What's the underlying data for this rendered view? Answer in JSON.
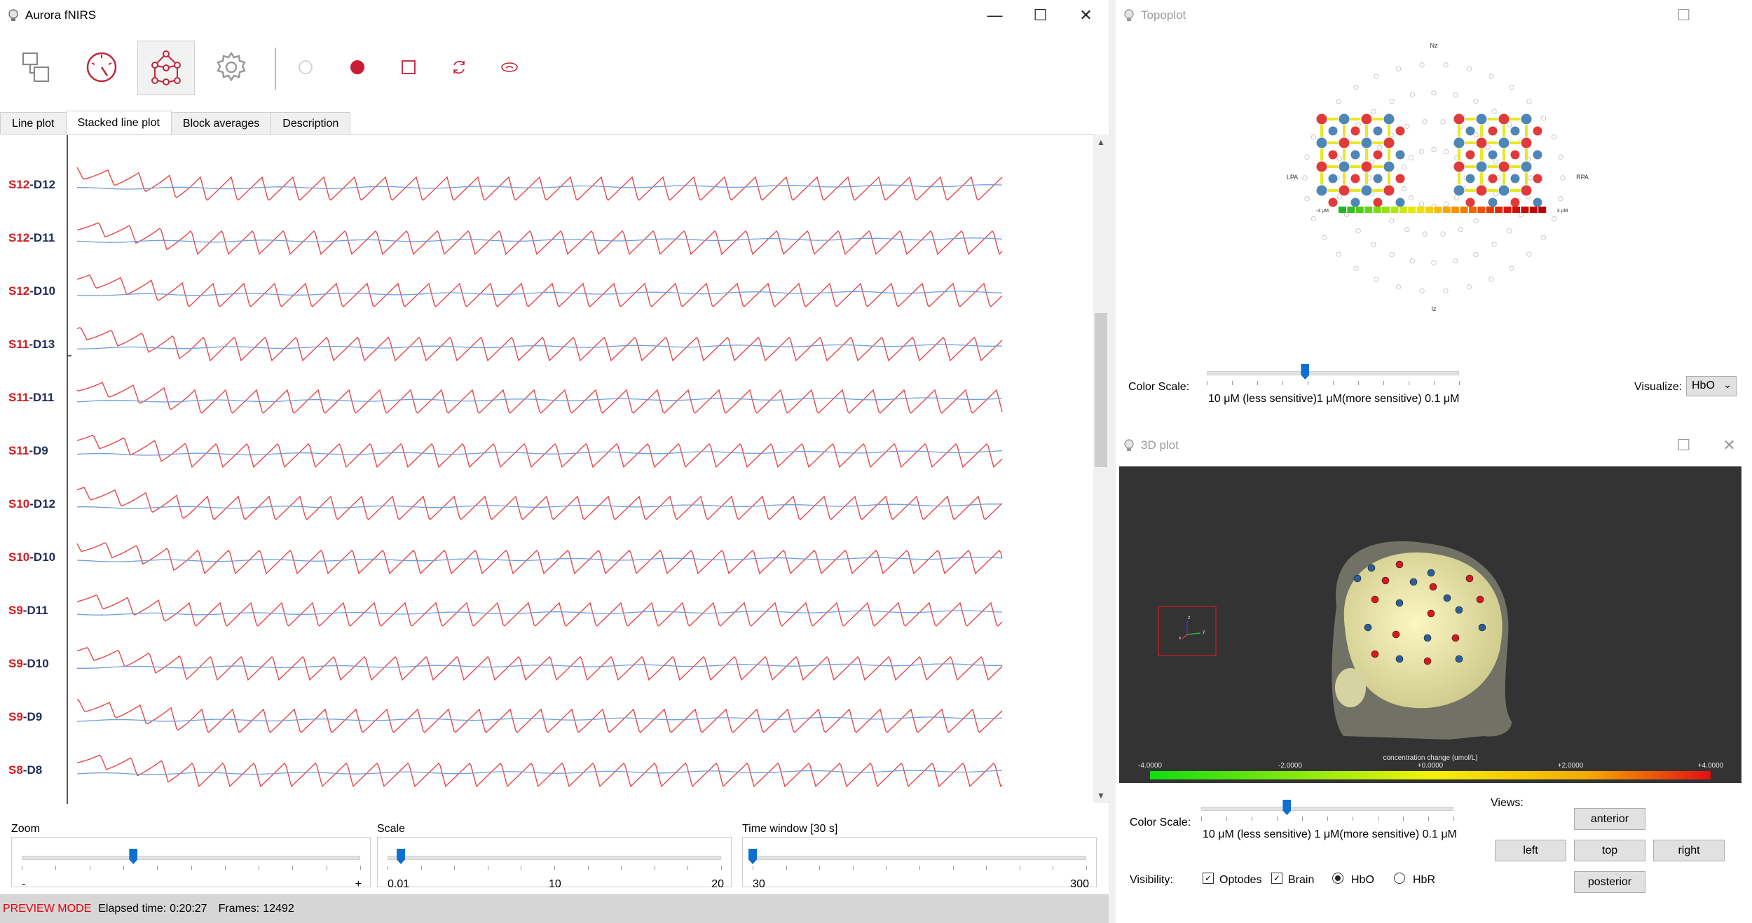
{
  "main_window": {
    "title": "Aurora fNIRS",
    "controls": {
      "minimize": "—",
      "maximize": "☐",
      "close": "✕"
    },
    "tabs": [
      {
        "label": "Line plot",
        "active": false
      },
      {
        "label": "Stacked line plot",
        "active": true
      },
      {
        "label": "Block averages",
        "active": false
      },
      {
        "label": "Description",
        "active": false
      }
    ],
    "channels": [
      {
        "source": "S12",
        "sep": "-",
        "detector": "D12"
      },
      {
        "source": "S12",
        "sep": "-",
        "detector": "D11"
      },
      {
        "source": "S12",
        "sep": "-",
        "detector": "D10"
      },
      {
        "source": "S11",
        "sep": "-",
        "detector": "D13"
      },
      {
        "source": "S11",
        "sep": "-",
        "detector": "D11"
      },
      {
        "source": "S11",
        "sep": "-",
        "detector": "D9"
      },
      {
        "source": "S10",
        "sep": "-",
        "detector": "D12"
      },
      {
        "source": "S10",
        "sep": "-",
        "detector": "D10"
      },
      {
        "source": "S9",
        "sep": "-",
        "detector": "D11"
      },
      {
        "source": "S9",
        "sep": "-",
        "detector": "D10"
      },
      {
        "source": "S9",
        "sep": "-",
        "detector": "D9"
      },
      {
        "source": "S8",
        "sep": "-",
        "detector": "D8"
      }
    ],
    "zoom": {
      "label": "Zoom",
      "min_label": "-",
      "max_label": "+",
      "value_fraction": 0.33
    },
    "scale": {
      "label": "Scale",
      "min": "0.01",
      "mid": "10",
      "max": "20",
      "value_fraction": 0.04
    },
    "time_window": {
      "label": "Time window [30 s]",
      "min": "30",
      "max": "300",
      "value_fraction": 0.0
    },
    "status": {
      "mode": "PREVIEW MODE",
      "elapsed_label": "Elapsed time:",
      "elapsed": "0:20:27",
      "frames_label": "Frames:",
      "frames": "12492"
    }
  },
  "topoplot_window": {
    "title": "Topoplot",
    "labels": {
      "nz": "Nz",
      "iz": "Iz",
      "lpa": "LPA",
      "rpa": "RPA"
    },
    "colorbar_min": "-3 μM",
    "colorbar_max": "3 μM",
    "color_scale_label": "Color Scale:",
    "slider_text": "10 μM (less sensitive)1 μM(more sensitive) 0.1 μM",
    "slider_fraction": 0.39,
    "visualize_label": "Visualize:",
    "visualize_value": "HbO"
  },
  "plot3d_window": {
    "title": "3D plot",
    "colorbar_title": "concentration change (umol/L)",
    "colorbar_ticks": [
      "-4.0000",
      "-2.0000",
      "+0.0000",
      "+2.0000",
      "+4.0000"
    ],
    "color_scale_label": "Color Scale:",
    "slider_text": "10 μM (less sensitive) 1 μM(more sensitive) 0.1 μM",
    "slider_fraction": 0.34,
    "views_label": "Views:",
    "views": {
      "anterior": "anterior",
      "left": "left",
      "top": "top",
      "right": "right",
      "posterior": "posterior"
    },
    "visibility_label": "Visibility:",
    "visibility": [
      {
        "label": "Optodes",
        "checked": true
      },
      {
        "label": "Brain",
        "checked": true
      }
    ],
    "signal": [
      {
        "label": "HbO",
        "selected": true
      },
      {
        "label": "HbR",
        "selected": false
      }
    ],
    "axes": {
      "z": "z",
      "y": "y",
      "x": "x"
    }
  },
  "colors": {
    "hbo": "#e8474a",
    "hbr": "#6f9fd8",
    "source": "#d7191c",
    "detector": "#1f2d5a",
    "accent": "#0f6fd1"
  }
}
